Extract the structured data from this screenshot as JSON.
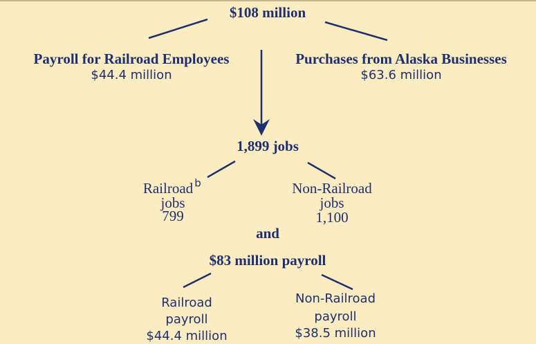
{
  "total": "$108 million",
  "spending": [
    {
      "label": "Payroll for Railroad Employees",
      "amount": "$44.4 million"
    },
    {
      "label": "Purchases from Alaska Businesses",
      "amount": "$63.6 million"
    }
  ],
  "jobs": {
    "total": "1,899 jobs",
    "breakdown": [
      {
        "label": "Railroad",
        "note": "b",
        "unit": "jobs",
        "value": "799"
      },
      {
        "label": "Non-Railroad",
        "unit": "jobs",
        "value": "1,100"
      }
    ]
  },
  "connector": "and",
  "payroll": {
    "total": "$83 million payroll",
    "breakdown": [
      {
        "label": "Railroad",
        "unit": "payroll",
        "value": "$44.4 million"
      },
      {
        "label": "Non-Railroad",
        "unit": "payroll",
        "value": "$38.5 million"
      }
    ]
  }
}
